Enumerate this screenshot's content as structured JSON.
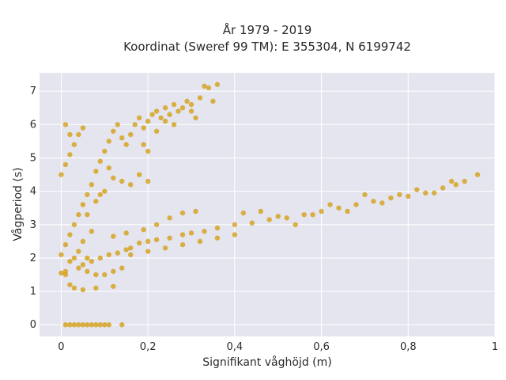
{
  "chart_data": {
    "type": "scatter",
    "title_line1": "År 1979 - 2019",
    "title_line2": "Koordinat (Sweref 99 TM): E 355304, N 6199742",
    "xlabel": "Signifikant våghöjd (m)",
    "ylabel": "Vågperiod (s)",
    "xlim": [
      -0.05,
      1.0
    ],
    "ylim": [
      -0.35,
      7.55
    ],
    "x_ticks": [
      0,
      0.2,
      0.4,
      0.6,
      0.8,
      1
    ],
    "x_tick_labels": [
      "0",
      "0,2",
      "0,4",
      "0,6",
      "0,8",
      "1"
    ],
    "y_ticks": [
      0,
      1,
      2,
      3,
      4,
      5,
      6,
      7
    ],
    "y_tick_labels": [
      "0",
      "1",
      "2",
      "3",
      "4",
      "5",
      "6",
      "7"
    ],
    "grid": true,
    "legend": "none",
    "marker_color": "#D4A017",
    "plot_background": "#E5E5F0",
    "series": [
      {
        "points": [
          [
            0.01,
            0
          ],
          [
            0.02,
            0
          ],
          [
            0.03,
            0
          ],
          [
            0.04,
            0
          ],
          [
            0.05,
            0
          ],
          [
            0.06,
            0
          ],
          [
            0.07,
            0
          ],
          [
            0.08,
            0
          ],
          [
            0.09,
            0
          ],
          [
            0.1,
            0
          ],
          [
            0.11,
            0
          ],
          [
            0.14,
            0
          ],
          [
            0.0,
            1.55
          ],
          [
            0.01,
            1.5
          ],
          [
            0.01,
            1.6
          ],
          [
            0.02,
            1.2
          ],
          [
            0.03,
            1.1
          ],
          [
            0.05,
            1.05
          ],
          [
            0.08,
            1.1
          ],
          [
            0.12,
            1.15
          ],
          [
            0.02,
            1.9
          ],
          [
            0.04,
            1.7
          ],
          [
            0.06,
            1.6
          ],
          [
            0.08,
            1.5
          ],
          [
            0.1,
            1.5
          ],
          [
            0.12,
            1.6
          ],
          [
            0.14,
            1.7
          ],
          [
            0.03,
            2.0
          ],
          [
            0.05,
            1.8
          ],
          [
            0.07,
            1.9
          ],
          [
            0.09,
            2.0
          ],
          [
            0.11,
            2.1
          ],
          [
            0.13,
            2.15
          ],
          [
            0.15,
            2.25
          ],
          [
            0.16,
            2.3
          ],
          [
            0.18,
            2.45
          ],
          [
            0.2,
            2.5
          ],
          [
            0.22,
            2.55
          ],
          [
            0.25,
            2.6
          ],
          [
            0.28,
            2.7
          ],
          [
            0.3,
            2.75
          ],
          [
            0.33,
            2.8
          ],
          [
            0.36,
            2.9
          ],
          [
            0.4,
            3.0
          ],
          [
            0.44,
            3.05
          ],
          [
            0.48,
            3.15
          ],
          [
            0.52,
            3.2
          ],
          [
            0.56,
            3.3
          ],
          [
            0.6,
            3.4
          ],
          [
            0.64,
            3.5
          ],
          [
            0.68,
            3.6
          ],
          [
            0.72,
            3.7
          ],
          [
            0.76,
            3.8
          ],
          [
            0.8,
            3.85
          ],
          [
            0.84,
            3.95
          ],
          [
            0.88,
            4.1
          ],
          [
            0.91,
            4.2
          ],
          [
            0.93,
            4.3
          ],
          [
            0.96,
            4.5
          ],
          [
            0.12,
            2.65
          ],
          [
            0.15,
            2.75
          ],
          [
            0.19,
            2.85
          ],
          [
            0.22,
            3.0
          ],
          [
            0.25,
            3.2
          ],
          [
            0.28,
            3.35
          ],
          [
            0.31,
            3.4
          ],
          [
            0.16,
            2.1
          ],
          [
            0.2,
            2.2
          ],
          [
            0.24,
            2.3
          ],
          [
            0.28,
            2.4
          ],
          [
            0.32,
            2.5
          ],
          [
            0.36,
            2.6
          ],
          [
            0.4,
            2.7
          ],
          [
            0.42,
            3.35
          ],
          [
            0.46,
            3.4
          ],
          [
            0.5,
            3.25
          ],
          [
            0.54,
            3.0
          ],
          [
            0.58,
            3.3
          ],
          [
            0.62,
            3.6
          ],
          [
            0.66,
            3.4
          ],
          [
            0.7,
            3.9
          ],
          [
            0.74,
            3.65
          ],
          [
            0.78,
            3.9
          ],
          [
            0.82,
            4.05
          ],
          [
            0.86,
            3.95
          ],
          [
            0.9,
            4.3
          ],
          [
            0.0,
            2.1
          ],
          [
            0.01,
            2.4
          ],
          [
            0.02,
            2.7
          ],
          [
            0.03,
            3.0
          ],
          [
            0.04,
            3.3
          ],
          [
            0.05,
            3.6
          ],
          [
            0.06,
            3.9
          ],
          [
            0.07,
            4.2
          ],
          [
            0.0,
            4.5
          ],
          [
            0.01,
            4.8
          ],
          [
            0.02,
            5.1
          ],
          [
            0.03,
            5.4
          ],
          [
            0.04,
            5.7
          ],
          [
            0.05,
            5.9
          ],
          [
            0.01,
            6.0
          ],
          [
            0.02,
            5.7
          ],
          [
            0.08,
            4.6
          ],
          [
            0.09,
            4.9
          ],
          [
            0.1,
            5.2
          ],
          [
            0.11,
            5.5
          ],
          [
            0.12,
            5.8
          ],
          [
            0.13,
            6.0
          ],
          [
            0.14,
            5.6
          ],
          [
            0.15,
            5.4
          ],
          [
            0.16,
            5.7
          ],
          [
            0.17,
            6.0
          ],
          [
            0.18,
            6.2
          ],
          [
            0.19,
            5.9
          ],
          [
            0.2,
            6.1
          ],
          [
            0.21,
            6.3
          ],
          [
            0.22,
            6.4
          ],
          [
            0.23,
            6.2
          ],
          [
            0.24,
            6.5
          ],
          [
            0.25,
            6.3
          ],
          [
            0.26,
            6.6
          ],
          [
            0.27,
            6.4
          ],
          [
            0.28,
            6.5
          ],
          [
            0.29,
            6.7
          ],
          [
            0.3,
            6.6
          ],
          [
            0.32,
            6.8
          ],
          [
            0.34,
            7.1
          ],
          [
            0.36,
            7.2
          ],
          [
            0.33,
            7.15
          ],
          [
            0.35,
            6.7
          ],
          [
            0.12,
            4.4
          ],
          [
            0.14,
            4.3
          ],
          [
            0.16,
            4.2
          ],
          [
            0.18,
            4.5
          ],
          [
            0.2,
            4.3
          ],
          [
            0.1,
            4.0
          ],
          [
            0.08,
            3.7
          ],
          [
            0.06,
            3.3
          ],
          [
            0.07,
            2.8
          ],
          [
            0.05,
            2.5
          ],
          [
            0.04,
            2.2
          ],
          [
            0.06,
            2.0
          ],
          [
            0.09,
            3.9
          ],
          [
            0.11,
            4.7
          ],
          [
            0.19,
            5.4
          ],
          [
            0.22,
            5.8
          ],
          [
            0.2,
            5.2
          ],
          [
            0.24,
            6.1
          ],
          [
            0.26,
            6.0
          ],
          [
            0.3,
            6.4
          ],
          [
            0.31,
            6.2
          ]
        ]
      }
    ]
  }
}
